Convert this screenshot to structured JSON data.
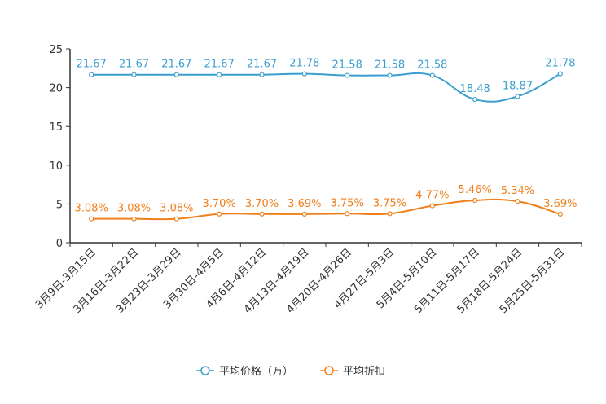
{
  "chart_data": {
    "type": "line",
    "title": "",
    "xlabel": "",
    "ylabel": "",
    "ylim": [
      0,
      25
    ],
    "yticks": [
      0,
      5,
      10,
      15,
      20,
      25
    ],
    "grid": false,
    "legend_position": "bottom-center",
    "categories": [
      "3月9日-3月15日",
      "3月16日-3月22日",
      "3月23日-3月29日",
      "3月30日-4月5日",
      "4月6日-4月12日",
      "4月13日-4月19日",
      "4月20日-4月26日",
      "4月27日-5月3日",
      "5月4日-5月10日",
      "5月11日-5月17日",
      "5月18日-5月24日",
      "5月25日-5月31日"
    ],
    "series": [
      {
        "name": "平均价格（万）",
        "color": "#3a9fcf",
        "values": [
          21.67,
          21.67,
          21.67,
          21.67,
          21.67,
          21.78,
          21.58,
          21.58,
          21.58,
          18.48,
          18.87,
          21.78
        ],
        "labels": [
          "21.67",
          "21.67",
          "21.67",
          "21.67",
          "21.67",
          "21.78",
          "21.58",
          "21.58",
          "21.58",
          "18.48",
          "18.87",
          "21.78"
        ]
      },
      {
        "name": "平均折扣",
        "color": "#f07f1a",
        "values": [
          3.08,
          3.08,
          3.08,
          3.7,
          3.7,
          3.69,
          3.75,
          3.75,
          4.77,
          5.46,
          5.34,
          3.69
        ],
        "labels": [
          "3.08%",
          "3.08%",
          "3.08%",
          "3.70%",
          "3.70%",
          "3.69%",
          "3.75%",
          "3.75%",
          "4.77%",
          "5.46%",
          "5.34%",
          "3.69%"
        ]
      }
    ]
  }
}
